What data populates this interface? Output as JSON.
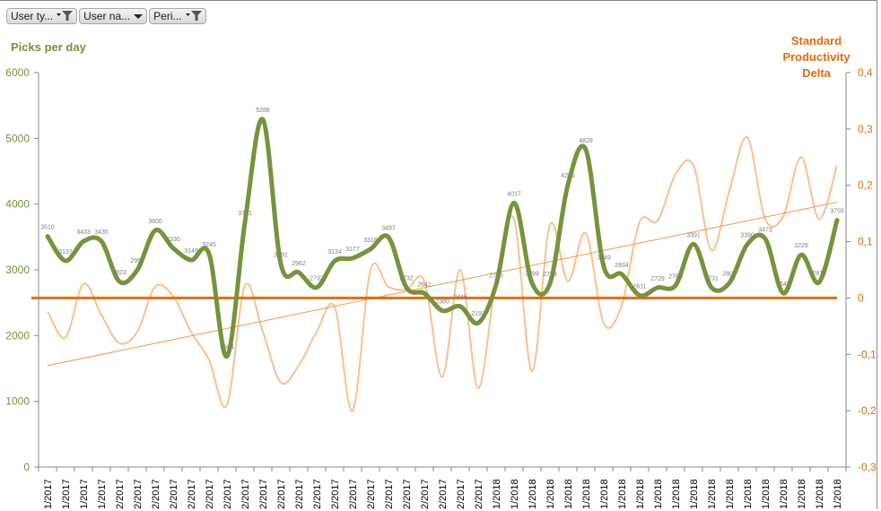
{
  "filters": [
    {
      "label": "User ty...",
      "icon": "filter-active-icon"
    },
    {
      "label": "User na...",
      "icon": "dropdown-icon"
    },
    {
      "label": "Peri...",
      "icon": "filter-active-icon"
    }
  ],
  "colors": {
    "picks": "#77933c",
    "delta": "#fac090",
    "standard": "#e46c0a",
    "trend": "#f79646",
    "left_axis": "#77933c",
    "right_axis": "#e46c0a"
  },
  "chart_data": {
    "type": "line",
    "title": "",
    "ylabel": "Picks per day",
    "y2label": "Standard Productivity Delta",
    "ylim": [
      0,
      6000
    ],
    "y2lim": [
      -0.3,
      0.4
    ],
    "yticks": [
      "0",
      "1000",
      "2000",
      "3000",
      "4000",
      "5000",
      "6000"
    ],
    "y2ticks": [
      "-0,3",
      "-0,2",
      "-0,1",
      "0",
      "0,1",
      "0,2",
      "0,3",
      "0,4"
    ],
    "categories": [
      "1/2017",
      "1/2017",
      "1/2017",
      "1/2017",
      "2/2017",
      "2/2017",
      "2/2017",
      "2/2017",
      "2/2017",
      "2/2017",
      "2/2017",
      "2/2017",
      "2/2017",
      "2/2017",
      "2/2017",
      "2/2017",
      "2/2017",
      "2/2017",
      "2/2017",
      "2/2017",
      "2/2017",
      "2/2017",
      "2/2017",
      "2/2017",
      "2/2017",
      "1/2018",
      "1/2018",
      "1/2018",
      "1/2018",
      "1/2018",
      "1/2018",
      "1/2018",
      "1/2018",
      "1/2018",
      "1/2018",
      "1/2018",
      "1/2018",
      "1/2018",
      "1/2018",
      "1/2018",
      "1/2018",
      "1/2018",
      "1/2018",
      "1/2018",
      "1/2018"
    ],
    "series": [
      {
        "name": "Picks per day",
        "axis": "left",
        "smooth": true,
        "values": [
          3510,
          3137,
          3433,
          3435,
          2823,
          2997,
          3600,
          3330,
          3149,
          3245,
          1684,
          3721,
          5288,
          3091,
          2962,
          2732,
          3134,
          3177,
          3316,
          3497,
          2732,
          2642,
          2380,
          2445,
          2193,
          2776,
          4017,
          2799,
          2793,
          4295,
          4828,
          3049,
          2934,
          2611,
          2729,
          2763,
          3391,
          2731,
          2801,
          3390,
          3473,
          2645,
          3229,
          2811,
          3755
        ],
        "labels": [
          "3510",
          "3137",
          "3433",
          "3435",
          "2823",
          "2997",
          "3600",
          "3330",
          "3149",
          "3245",
          "1684",
          "3721",
          "5288",
          "3091",
          "2962",
          "2732",
          "3134",
          "3177",
          "3316",
          "3497",
          "2732",
          "2642",
          "2380",
          "2445",
          "2193",
          "2776",
          "4017",
          "2799",
          "2793",
          "4295",
          "4828",
          "3049",
          "2934",
          "2611",
          "2729",
          "2763",
          "3391",
          "2731",
          "2801",
          "3390",
          "3473",
          "2645",
          "3229",
          "2811",
          "3755"
        ]
      },
      {
        "name": "Productivity Delta",
        "axis": "right",
        "smooth": true,
        "values": [
          -0.024,
          -0.07,
          0.025,
          -0.03,
          -0.08,
          -0.06,
          0.02,
          0.003,
          -0.06,
          -0.11,
          -0.19,
          0.022,
          -0.06,
          -0.15,
          -0.12,
          -0.06,
          -0.016,
          -0.2,
          0.05,
          0.02,
          0.015,
          0.03,
          -0.14,
          0.05,
          -0.16,
          0.035,
          0.14,
          -0.13,
          0.13,
          0.03,
          0.115,
          -0.045,
          -0.013,
          0.135,
          0.137,
          0.22,
          0.235,
          0.085,
          0.19,
          0.285,
          0.14,
          0.145,
          0.25,
          0.14,
          0.235
        ]
      },
      {
        "name": "Standard",
        "axis": "right",
        "constant": 0
      },
      {
        "name": "Linear trend (Delta)",
        "axis": "right",
        "trendline": "linear",
        "start": -0.12,
        "end": 0.17
      }
    ],
    "grid": false,
    "legend": "none"
  }
}
